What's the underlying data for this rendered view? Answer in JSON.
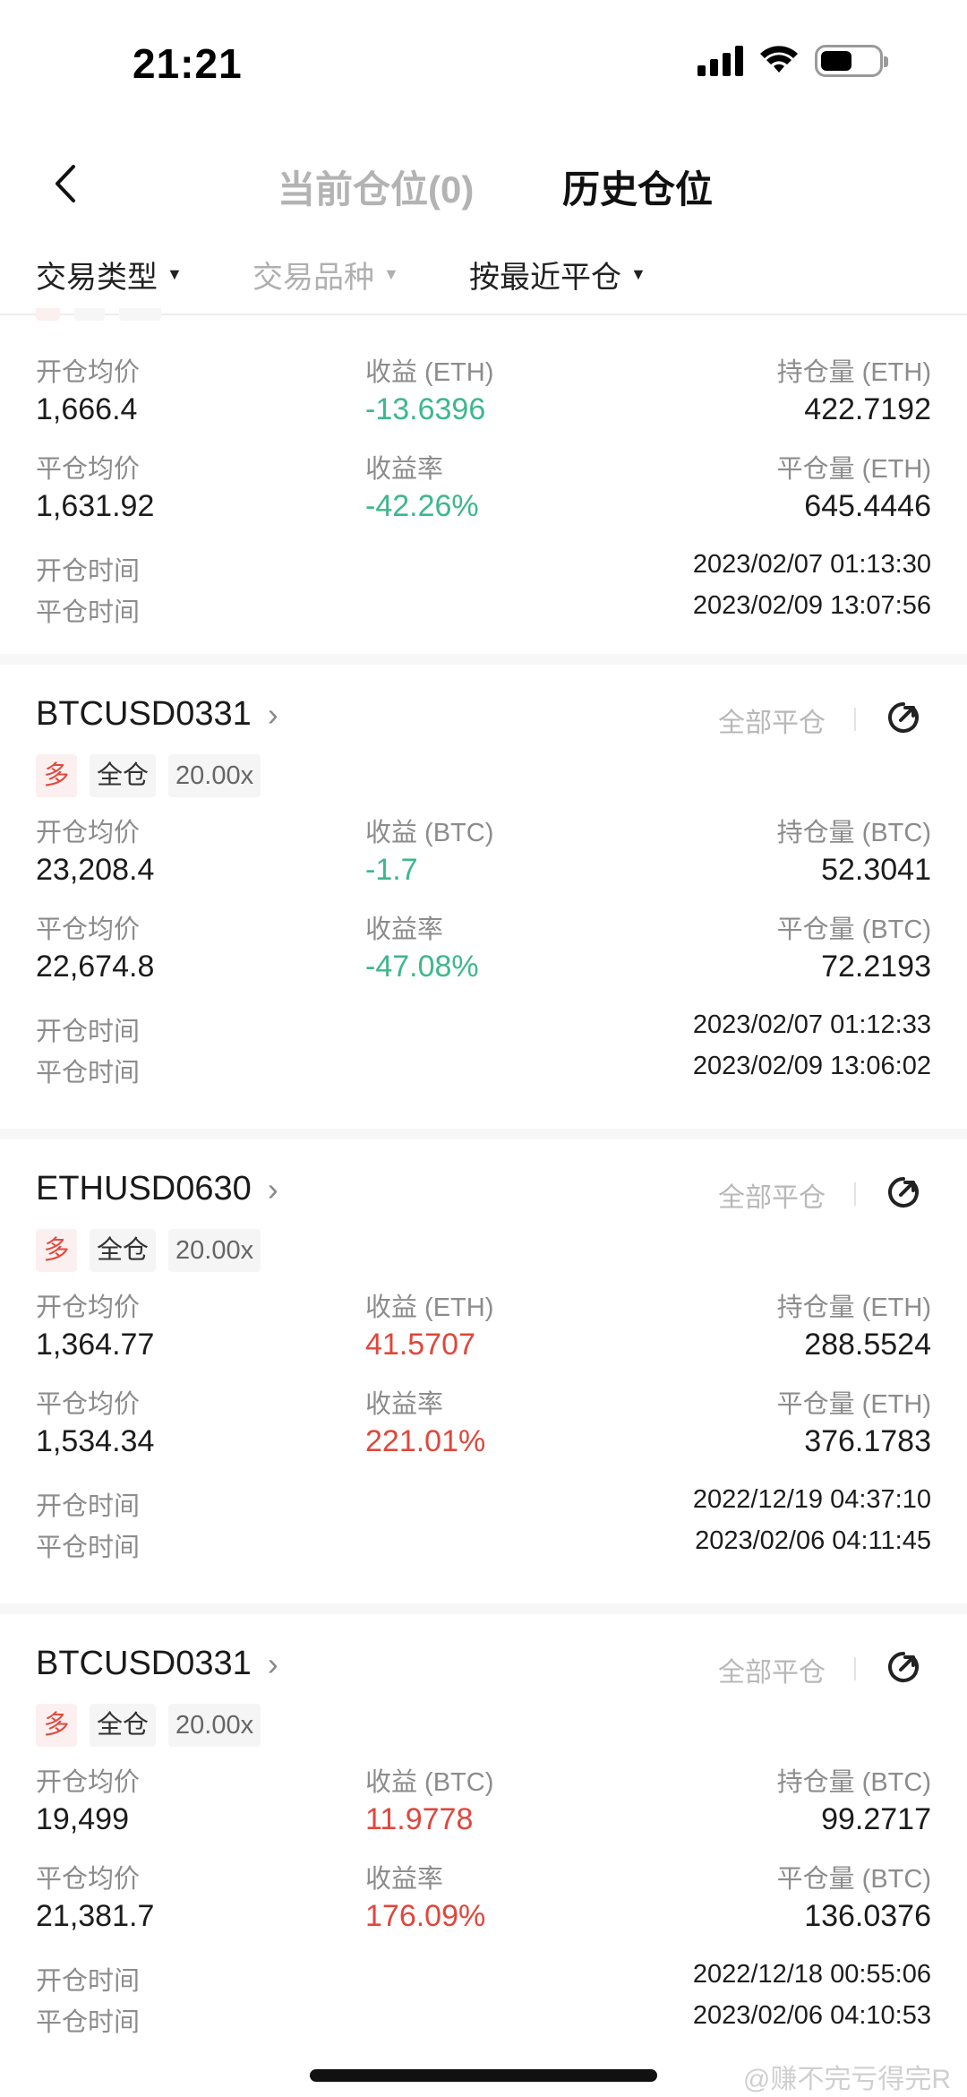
{
  "status": {
    "time": "21:21"
  },
  "header": {
    "tab_current": "当前仓位(0)",
    "tab_history": "历史仓位"
  },
  "filters": {
    "type": "交易类型",
    "symbol": "交易品种",
    "sort": "按最近平仓"
  },
  "labels": {
    "open_avg": "开仓均价",
    "close_avg": "平仓均价",
    "pnl_rate": "收益率",
    "open_time": "开仓时间",
    "close_time": "平仓时间",
    "close_all": "全部平仓"
  },
  "positions": [
    {
      "symbol": "",
      "pnl_label": "收益 (ETH)",
      "hold_label": "持仓量 (ETH)",
      "closed_label": "平仓量 (ETH)",
      "open_avg": "1,666.4",
      "close_avg": "1,631.92",
      "pnl": "-13.6396",
      "pnl_rate": "-42.26%",
      "hold_qty": "422.7192",
      "closed_qty": "645.4446",
      "open_time": "2023/02/07 01:13:30",
      "close_time": "2023/02/09 13:07:56",
      "result": "loss"
    },
    {
      "symbol": "BTCUSD0331",
      "side": "多",
      "margin_mode": "全仓",
      "leverage": "20.00x",
      "pnl_label": "收益 (BTC)",
      "hold_label": "持仓量 (BTC)",
      "closed_label": "平仓量 (BTC)",
      "open_avg": "23,208.4",
      "close_avg": "22,674.8",
      "pnl": "-1.7",
      "pnl_rate": "-47.08%",
      "hold_qty": "52.3041",
      "closed_qty": "72.2193",
      "open_time": "2023/02/07 01:12:33",
      "close_time": "2023/02/09 13:06:02",
      "result": "loss"
    },
    {
      "symbol": "ETHUSD0630",
      "side": "多",
      "margin_mode": "全仓",
      "leverage": "20.00x",
      "pnl_label": "收益 (ETH)",
      "hold_label": "持仓量 (ETH)",
      "closed_label": "平仓量 (ETH)",
      "open_avg": "1,364.77",
      "close_avg": "1,534.34",
      "pnl": "41.5707",
      "pnl_rate": "221.01%",
      "hold_qty": "288.5524",
      "closed_qty": "376.1783",
      "open_time": "2022/12/19 04:37:10",
      "close_time": "2023/02/06 04:11:45",
      "result": "profit"
    },
    {
      "symbol": "BTCUSD0331",
      "side": "多",
      "margin_mode": "全仓",
      "leverage": "20.00x",
      "pnl_label": "收益 (BTC)",
      "hold_label": "持仓量 (BTC)",
      "closed_label": "平仓量 (BTC)",
      "open_avg": "19,499",
      "close_avg": "21,381.7",
      "pnl": "11.9778",
      "pnl_rate": "176.09%",
      "hold_qty": "99.2717",
      "closed_qty": "136.0376",
      "open_time": "2022/12/18 00:55:06",
      "close_time": "2023/02/06 04:10:53",
      "result": "profit"
    }
  ],
  "colors": {
    "profit": "#e0473c",
    "loss": "#3db88b",
    "long_tag": "#e04a3e"
  },
  "watermark": "@赚不完亏得完R"
}
